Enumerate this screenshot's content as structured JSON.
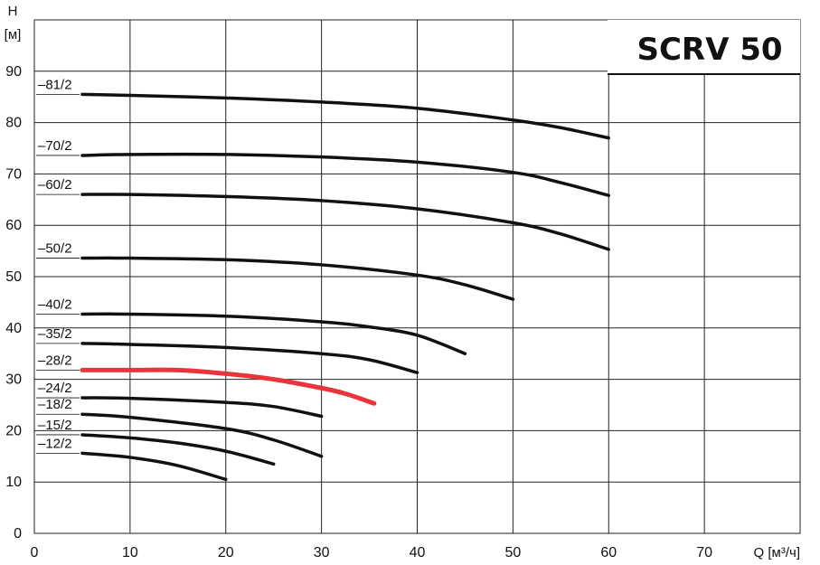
{
  "chart_data": {
    "type": "line",
    "title": "SCRV 50",
    "ylabel": "H",
    "ylabel_unit": "[м]",
    "xlabel": "Q [м³/ч]",
    "xlim": [
      0,
      80
    ],
    "ylim": [
      0,
      100
    ],
    "x_ticks": [
      0,
      10,
      20,
      30,
      40,
      50,
      60,
      70
    ],
    "y_ticks": [
      0,
      10,
      20,
      30,
      40,
      50,
      60,
      70,
      80,
      90
    ],
    "grid": true,
    "colors": {
      "default": "#111111",
      "highlight": "#e8343a",
      "grid": "#222222"
    },
    "series": [
      {
        "name": "–81/2",
        "color": "#111111",
        "points": [
          [
            5,
            85.5
          ],
          [
            10,
            85.3
          ],
          [
            20,
            84.8
          ],
          [
            30,
            84.0
          ],
          [
            40,
            82.8
          ],
          [
            50,
            80.5
          ],
          [
            55,
            79.0
          ],
          [
            60,
            77.0
          ]
        ]
      },
      {
        "name": "–70/2",
        "color": "#111111",
        "points": [
          [
            5,
            73.6
          ],
          [
            10,
            73.8
          ],
          [
            20,
            73.8
          ],
          [
            30,
            73.3
          ],
          [
            40,
            72.3
          ],
          [
            50,
            70.3
          ],
          [
            55,
            68.3
          ],
          [
            60,
            65.8
          ]
        ]
      },
      {
        "name": "–60/2",
        "color": "#111111",
        "points": [
          [
            5,
            66.0
          ],
          [
            10,
            66.0
          ],
          [
            20,
            65.6
          ],
          [
            30,
            64.8
          ],
          [
            40,
            63.2
          ],
          [
            50,
            60.5
          ],
          [
            55,
            58.3
          ],
          [
            60,
            55.3
          ]
        ]
      },
      {
        "name": "–50/2",
        "color": "#111111",
        "points": [
          [
            5,
            53.6
          ],
          [
            10,
            53.6
          ],
          [
            20,
            53.3
          ],
          [
            30,
            52.3
          ],
          [
            40,
            50.3
          ],
          [
            45,
            48.4
          ],
          [
            50,
            45.6
          ]
        ]
      },
      {
        "name": "–40/2",
        "color": "#111111",
        "points": [
          [
            5,
            42.7
          ],
          [
            10,
            42.7
          ],
          [
            20,
            42.3
          ],
          [
            30,
            41.2
          ],
          [
            35,
            40.2
          ],
          [
            40,
            38.6
          ],
          [
            45,
            35.0
          ]
        ]
      },
      {
        "name": "–35/2",
        "color": "#111111",
        "points": [
          [
            5,
            37.0
          ],
          [
            10,
            36.8
          ],
          [
            20,
            36.2
          ],
          [
            30,
            35.0
          ],
          [
            35,
            33.8
          ],
          [
            40,
            31.3
          ]
        ]
      },
      {
        "name": "–28/2",
        "color": "#e8343a",
        "points": [
          [
            5,
            31.8
          ],
          [
            10,
            31.8
          ],
          [
            15,
            31.8
          ],
          [
            20,
            31.1
          ],
          [
            25,
            30.0
          ],
          [
            30,
            28.3
          ],
          [
            32.5,
            27.2
          ],
          [
            35.5,
            25.3
          ]
        ]
      },
      {
        "name": "–24/2",
        "color": "#111111",
        "points": [
          [
            5,
            26.4
          ],
          [
            10,
            26.3
          ],
          [
            20,
            25.5
          ],
          [
            25,
            24.7
          ],
          [
            30,
            22.8
          ]
        ]
      },
      {
        "name": "–18/2",
        "color": "#111111",
        "points": [
          [
            5,
            23.2
          ],
          [
            10,
            22.6
          ],
          [
            20,
            20.4
          ],
          [
            25,
            18.2
          ],
          [
            30,
            15.0
          ]
        ]
      },
      {
        "name": "–15/2",
        "color": "#111111",
        "points": [
          [
            5,
            19.2
          ],
          [
            10,
            18.6
          ],
          [
            15,
            17.6
          ],
          [
            20,
            16.0
          ],
          [
            25,
            13.5
          ]
        ]
      },
      {
        "name": "–12/2",
        "color": "#111111",
        "points": [
          [
            5,
            15.6
          ],
          [
            10,
            14.8
          ],
          [
            15,
            13.2
          ],
          [
            20,
            10.5
          ]
        ]
      }
    ]
  }
}
